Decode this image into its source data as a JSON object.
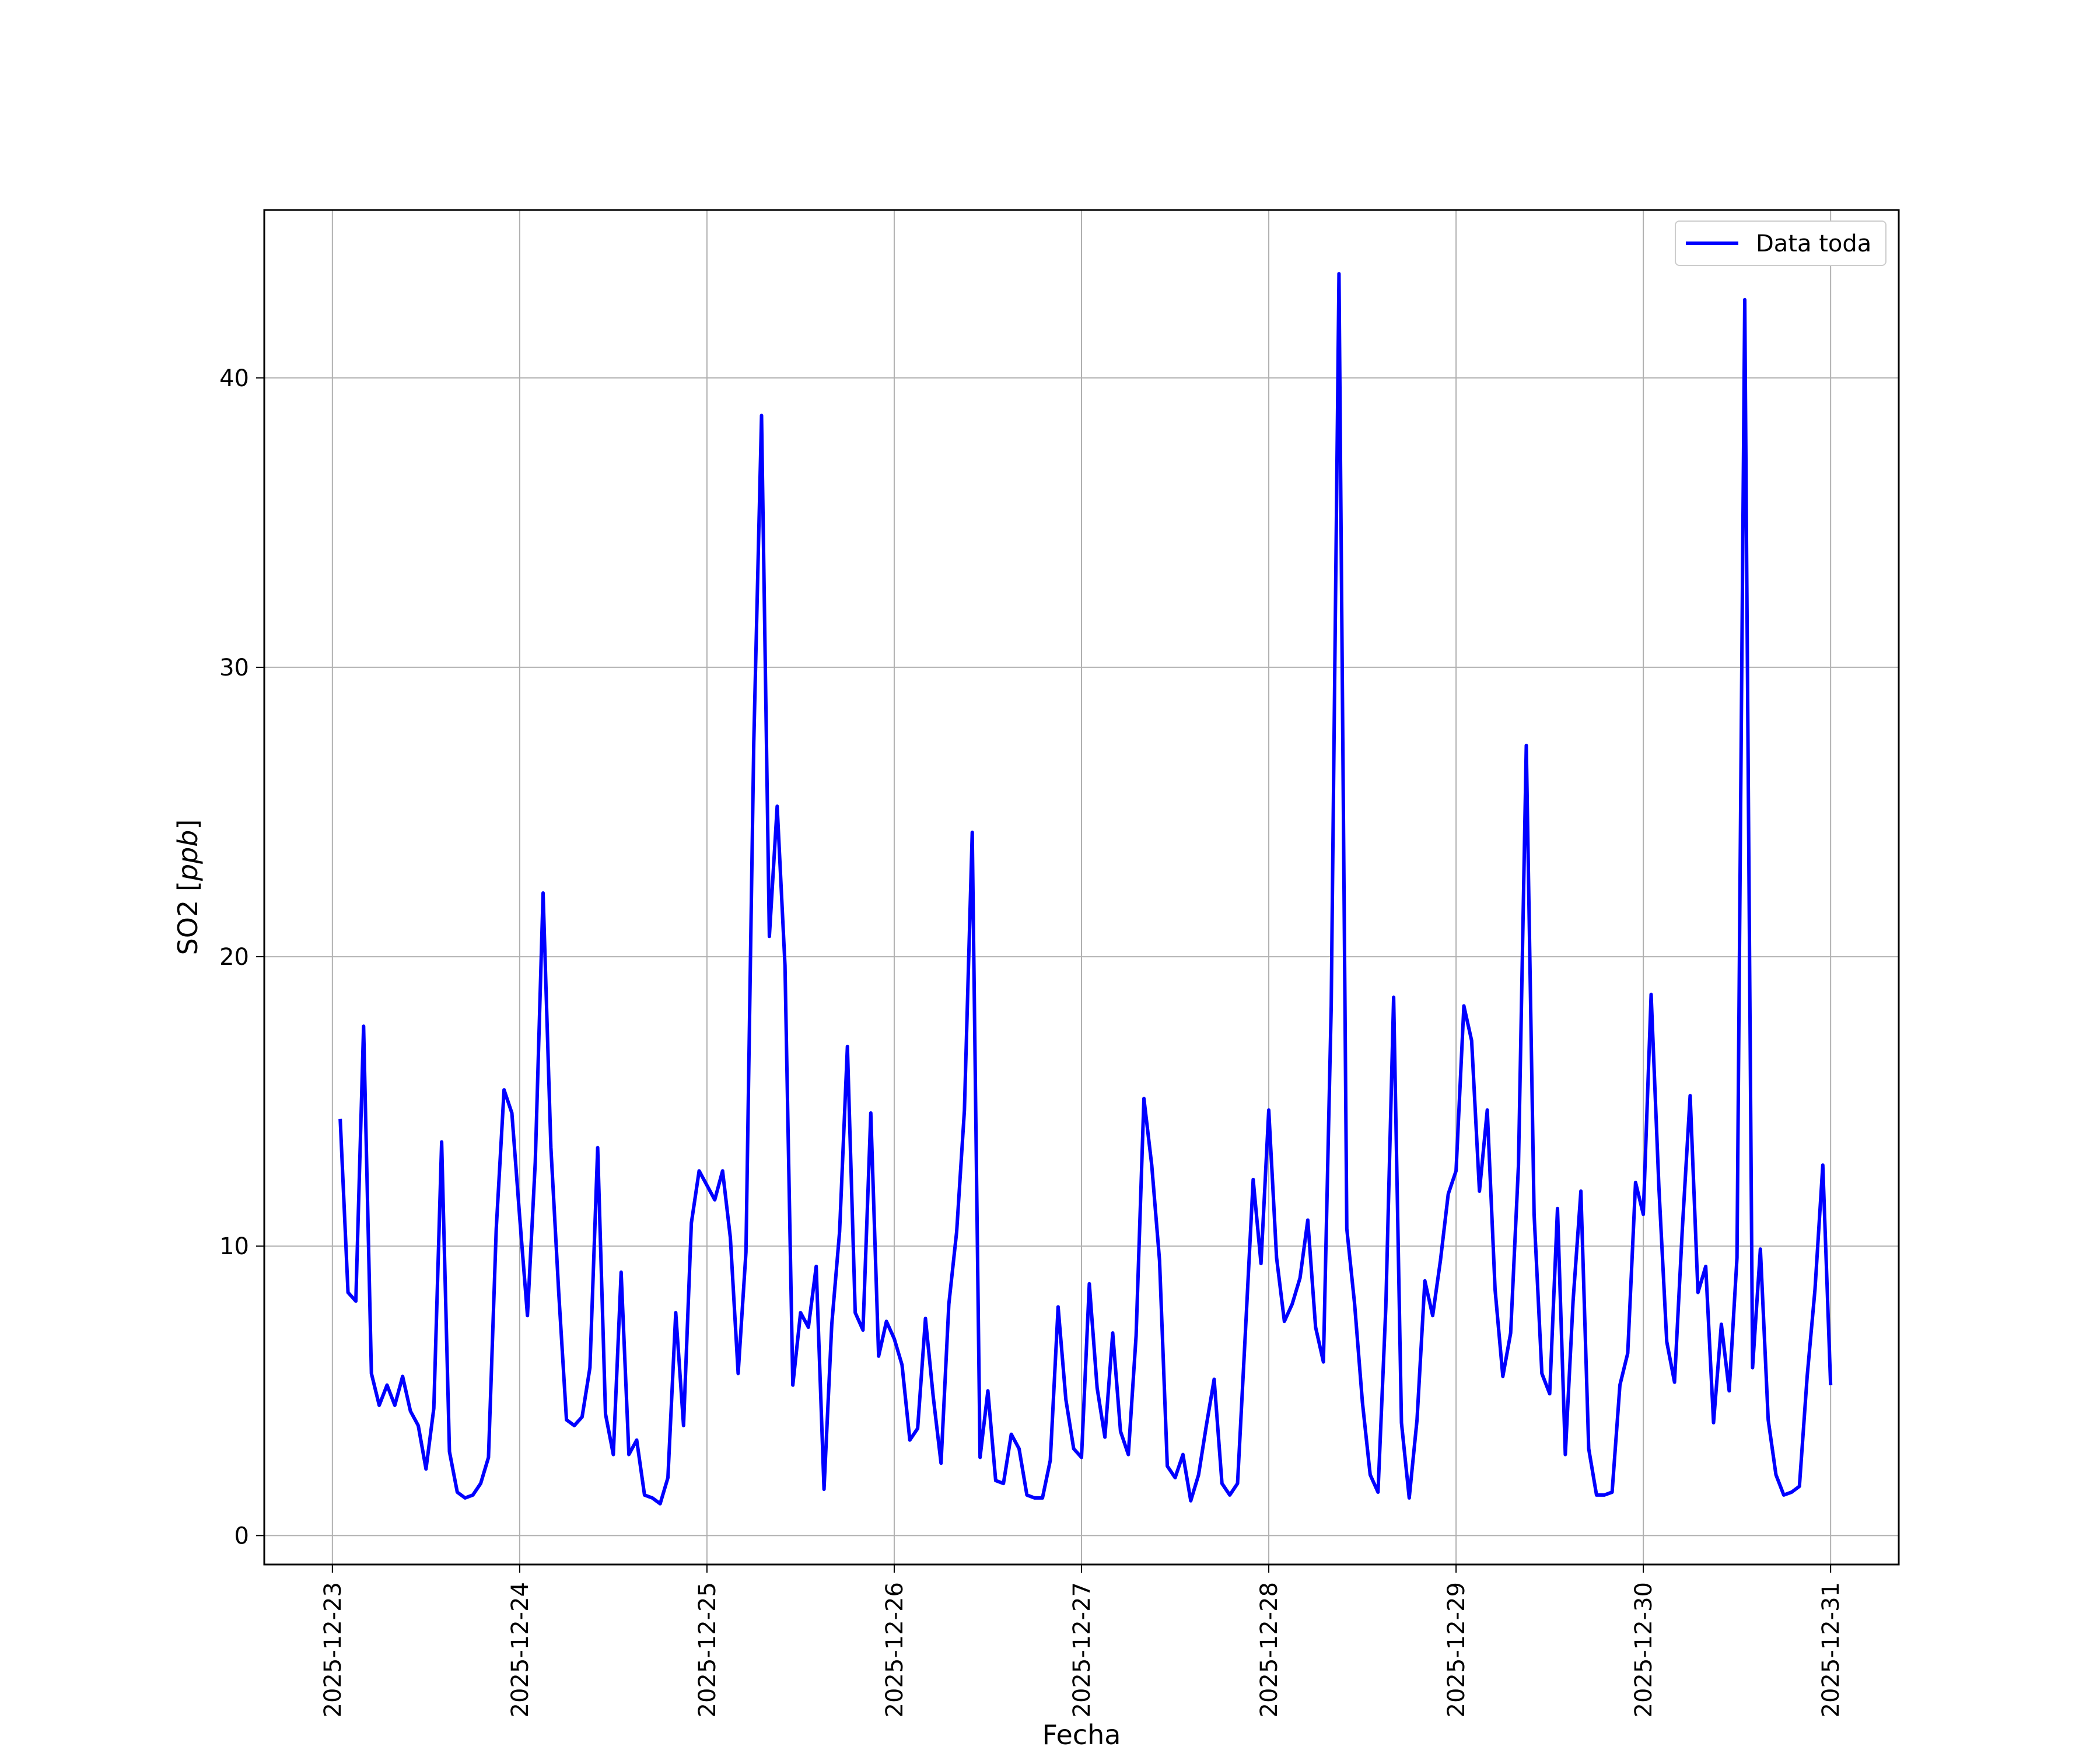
{
  "chart_data": {
    "type": "line",
    "xlabel": "Fecha",
    "ylabel": "SO2",
    "ylabel_unit": "ppb",
    "xlim": [
      "2025-12-22T15:16",
      "2025-12-31T08:44"
    ],
    "ylim": [
      -1,
      45.8
    ],
    "grid": true,
    "legend_position": "top-right",
    "x_ticks": [
      "2025-12-23",
      "2025-12-24",
      "2025-12-25",
      "2025-12-26",
      "2025-12-27",
      "2025-12-28",
      "2025-12-29",
      "2025-12-30",
      "2025-12-31"
    ],
    "y_ticks": [
      0,
      10,
      20,
      30,
      40
    ],
    "series": [
      {
        "name": "Data toda",
        "color": "#0000ff",
        "x": [
          "2025-12-23T01:00",
          "2025-12-23T02:00",
          "2025-12-23T03:00",
          "2025-12-23T04:00",
          "2025-12-23T05:00",
          "2025-12-23T06:00",
          "2025-12-23T07:00",
          "2025-12-23T08:00",
          "2025-12-23T09:00",
          "2025-12-23T10:00",
          "2025-12-23T11:00",
          "2025-12-23T12:00",
          "2025-12-23T13:00",
          "2025-12-23T14:00",
          "2025-12-23T15:00",
          "2025-12-23T16:00",
          "2025-12-23T17:00",
          "2025-12-23T18:00",
          "2025-12-23T19:00",
          "2025-12-23T20:00",
          "2025-12-23T21:00",
          "2025-12-23T22:00",
          "2025-12-23T23:00",
          "2025-12-24T00:00",
          "2025-12-24T01:00",
          "2025-12-24T02:00",
          "2025-12-24T03:00",
          "2025-12-24T04:00",
          "2025-12-24T05:00",
          "2025-12-24T06:00",
          "2025-12-24T07:00",
          "2025-12-24T08:00",
          "2025-12-24T09:00",
          "2025-12-24T10:00",
          "2025-12-24T11:00",
          "2025-12-24T12:00",
          "2025-12-24T13:00",
          "2025-12-24T14:00",
          "2025-12-24T15:00",
          "2025-12-24T16:00",
          "2025-12-24T17:00",
          "2025-12-24T18:00",
          "2025-12-24T19:00",
          "2025-12-24T20:00",
          "2025-12-24T21:00",
          "2025-12-24T22:00",
          "2025-12-24T23:00",
          "2025-12-25T00:00",
          "2025-12-25T01:00",
          "2025-12-25T02:00",
          "2025-12-25T03:00",
          "2025-12-25T04:00",
          "2025-12-25T05:00",
          "2025-12-25T06:00",
          "2025-12-25T07:00",
          "2025-12-25T08:00",
          "2025-12-25T09:00",
          "2025-12-25T10:00",
          "2025-12-25T11:00",
          "2025-12-25T12:00",
          "2025-12-25T13:00",
          "2025-12-25T14:00",
          "2025-12-25T15:00",
          "2025-12-25T16:00",
          "2025-12-25T17:00",
          "2025-12-25T18:00",
          "2025-12-25T19:00",
          "2025-12-25T20:00",
          "2025-12-25T21:00",
          "2025-12-25T22:00",
          "2025-12-25T23:00",
          "2025-12-26T00:00",
          "2025-12-26T01:00",
          "2025-12-26T02:00",
          "2025-12-26T03:00",
          "2025-12-26T04:00",
          "2025-12-26T05:00",
          "2025-12-26T06:00",
          "2025-12-26T07:00",
          "2025-12-26T08:00",
          "2025-12-26T09:00",
          "2025-12-26T10:00",
          "2025-12-26T11:00",
          "2025-12-26T12:00",
          "2025-12-26T13:00",
          "2025-12-26T14:00",
          "2025-12-26T15:00",
          "2025-12-26T16:00",
          "2025-12-26T17:00",
          "2025-12-26T18:00",
          "2025-12-26T19:00",
          "2025-12-26T20:00",
          "2025-12-26T21:00",
          "2025-12-26T22:00",
          "2025-12-26T23:00",
          "2025-12-27T00:00",
          "2025-12-27T01:00",
          "2025-12-27T02:00",
          "2025-12-27T03:00",
          "2025-12-27T04:00",
          "2025-12-27T05:00",
          "2025-12-27T06:00",
          "2025-12-27T07:00",
          "2025-12-27T08:00",
          "2025-12-27T09:00",
          "2025-12-27T10:00",
          "2025-12-27T11:00",
          "2025-12-27T12:00",
          "2025-12-27T13:00",
          "2025-12-27T14:00",
          "2025-12-27T15:00",
          "2025-12-27T16:00",
          "2025-12-27T17:00",
          "2025-12-27T18:00",
          "2025-12-27T19:00",
          "2025-12-27T20:00",
          "2025-12-27T21:00",
          "2025-12-27T22:00",
          "2025-12-27T23:00",
          "2025-12-28T00:00",
          "2025-12-28T01:00",
          "2025-12-28T02:00",
          "2025-12-28T03:00",
          "2025-12-28T04:00",
          "2025-12-28T05:00",
          "2025-12-28T06:00",
          "2025-12-28T07:00",
          "2025-12-28T08:00",
          "2025-12-28T09:00",
          "2025-12-28T10:00",
          "2025-12-28T11:00",
          "2025-12-28T12:00",
          "2025-12-28T13:00",
          "2025-12-28T14:00",
          "2025-12-28T15:00",
          "2025-12-28T16:00",
          "2025-12-28T17:00",
          "2025-12-28T18:00",
          "2025-12-28T19:00",
          "2025-12-28T20:00",
          "2025-12-28T21:00",
          "2025-12-28T22:00",
          "2025-12-28T23:00",
          "2025-12-29T00:00",
          "2025-12-29T01:00",
          "2025-12-29T02:00",
          "2025-12-29T03:00",
          "2025-12-29T04:00",
          "2025-12-29T05:00",
          "2025-12-29T06:00",
          "2025-12-29T07:00",
          "2025-12-29T08:00",
          "2025-12-29T09:00",
          "2025-12-29T10:00",
          "2025-12-29T11:00",
          "2025-12-29T12:00",
          "2025-12-29T13:00",
          "2025-12-29T14:00",
          "2025-12-29T15:00",
          "2025-12-29T16:00",
          "2025-12-29T17:00",
          "2025-12-29T18:00",
          "2025-12-29T19:00",
          "2025-12-29T20:00",
          "2025-12-29T21:00",
          "2025-12-29T22:00",
          "2025-12-29T23:00",
          "2025-12-30T00:00",
          "2025-12-30T01:00",
          "2025-12-30T02:00",
          "2025-12-30T03:00",
          "2025-12-30T04:00",
          "2025-12-30T05:00",
          "2025-12-30T06:00",
          "2025-12-30T07:00",
          "2025-12-30T08:00",
          "2025-12-30T09:00",
          "2025-12-30T10:00",
          "2025-12-30T11:00",
          "2025-12-30T12:00",
          "2025-12-30T13:00",
          "2025-12-30T14:00",
          "2025-12-30T15:00",
          "2025-12-30T16:00",
          "2025-12-30T17:00",
          "2025-12-30T18:00",
          "2025-12-30T19:00",
          "2025-12-30T20:00",
          "2025-12-30T21:00",
          "2025-12-30T22:00",
          "2025-12-30T23:00",
          "2025-12-31T00:00"
        ],
        "y": [
          14.4,
          8.4,
          8.1,
          17.6,
          5.6,
          4.5,
          5.2,
          4.5,
          5.5,
          4.3,
          3.8,
          2.3,
          4.4,
          13.6,
          2.9,
          1.5,
          1.3,
          1.4,
          1.8,
          2.7,
          10.6,
          15.4,
          14.6,
          11.0,
          7.6,
          12.9,
          22.2,
          13.4,
          8.4,
          4.0,
          3.8,
          4.1,
          5.8,
          13.4,
          4.2,
          2.8,
          9.1,
          2.8,
          3.3,
          1.4,
          1.3,
          1.1,
          2.0,
          7.7,
          3.8,
          10.8,
          12.6,
          12.1,
          11.6,
          12.6,
          10.3,
          5.6,
          9.8,
          27.4,
          38.7,
          20.7,
          25.2,
          19.7,
          5.2,
          7.7,
          7.2,
          9.3,
          1.6,
          7.3,
          10.5,
          16.9,
          7.7,
          7.1,
          14.6,
          6.2,
          7.4,
          6.8,
          5.9,
          3.3,
          3.7,
          7.5,
          4.8,
          2.5,
          8.0,
          10.5,
          14.7,
          24.3,
          2.7,
          5.0,
          1.9,
          1.8,
          3.5,
          3.0,
          1.4,
          1.3,
          1.3,
          2.6,
          7.9,
          4.7,
          3.0,
          2.7,
          8.7,
          5.1,
          3.4,
          7.0,
          3.6,
          2.8,
          6.9,
          15.1,
          12.8,
          9.5,
          2.4,
          2.0,
          2.8,
          1.2,
          2.1,
          3.8,
          5.4,
          1.8,
          1.4,
          1.8,
          7.0,
          12.3,
          9.4,
          14.7,
          9.6,
          7.4,
          8.0,
          8.9,
          10.9,
          7.2,
          6.0,
          18.3,
          43.6,
          10.6,
          8.0,
          4.6,
          2.1,
          1.5,
          7.9,
          18.6,
          3.9,
          1.3,
          4.0,
          8.8,
          7.6,
          9.5,
          11.8,
          12.6,
          18.3,
          17.1,
          11.9,
          14.7,
          8.5,
          5.5,
          7.0,
          12.8,
          27.3,
          11.1,
          5.6,
          4.9,
          11.3,
          2.8,
          8.1,
          11.9,
          3.0,
          1.4,
          1.4,
          1.5,
          5.2,
          6.3,
          12.2,
          11.1,
          18.7,
          12.0,
          6.7,
          5.3,
          10.6,
          15.2,
          8.4,
          9.3,
          3.9,
          7.3,
          5.0,
          9.6,
          42.7,
          5.8,
          9.9,
          4.0,
          2.1,
          1.4,
          1.5,
          1.7,
          5.5,
          8.5,
          12.8,
          5.2
        ]
      }
    ]
  }
}
